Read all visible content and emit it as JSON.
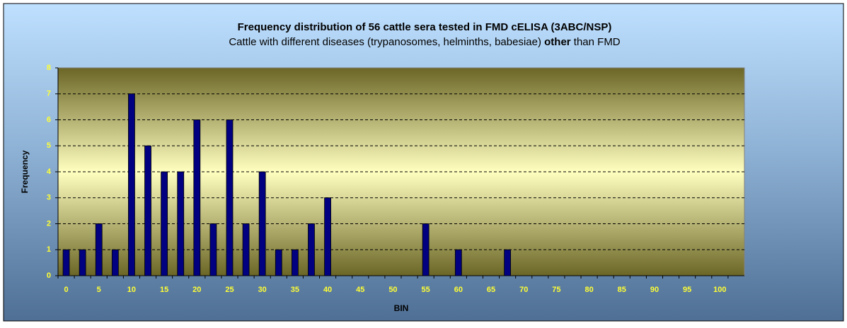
{
  "chart_data": {
    "type": "bar",
    "title": "Frequency distribution of 56 cattle sera tested in FMD cELISA (3ABC/NSP)",
    "subtitle": [
      "Cattle with different diseases (trypanosomes, helminths, babesiae) ",
      "other",
      " than FMD"
    ],
    "x_label": "BIN",
    "y_label": "Frequency",
    "categories": [
      "0",
      null,
      "5",
      null,
      "10",
      null,
      "15",
      null,
      "20",
      null,
      "25",
      null,
      "30",
      null,
      "35",
      null,
      "40",
      null,
      "45",
      null,
      "50",
      null,
      "55",
      null,
      "60",
      null,
      "65",
      null,
      "70",
      null,
      "75",
      null,
      "80",
      null,
      "85",
      null,
      "90",
      null,
      "95",
      null,
      "100",
      null
    ],
    "values": [
      1,
      1,
      2,
      1,
      7,
      5,
      4,
      4,
      6,
      2,
      6,
      2,
      4,
      1,
      1,
      2,
      3,
      0,
      0,
      0,
      0,
      0,
      2,
      0,
      1,
      0,
      0,
      1,
      0,
      0,
      0,
      0,
      0,
      0,
      0,
      0,
      0,
      0,
      0,
      0,
      0,
      0
    ],
    "color": "#000080",
    "ylim": [
      0,
      8
    ],
    "yticks": [
      0,
      1,
      2,
      3,
      4,
      5,
      6,
      7,
      8
    ],
    "grid": true
  }
}
